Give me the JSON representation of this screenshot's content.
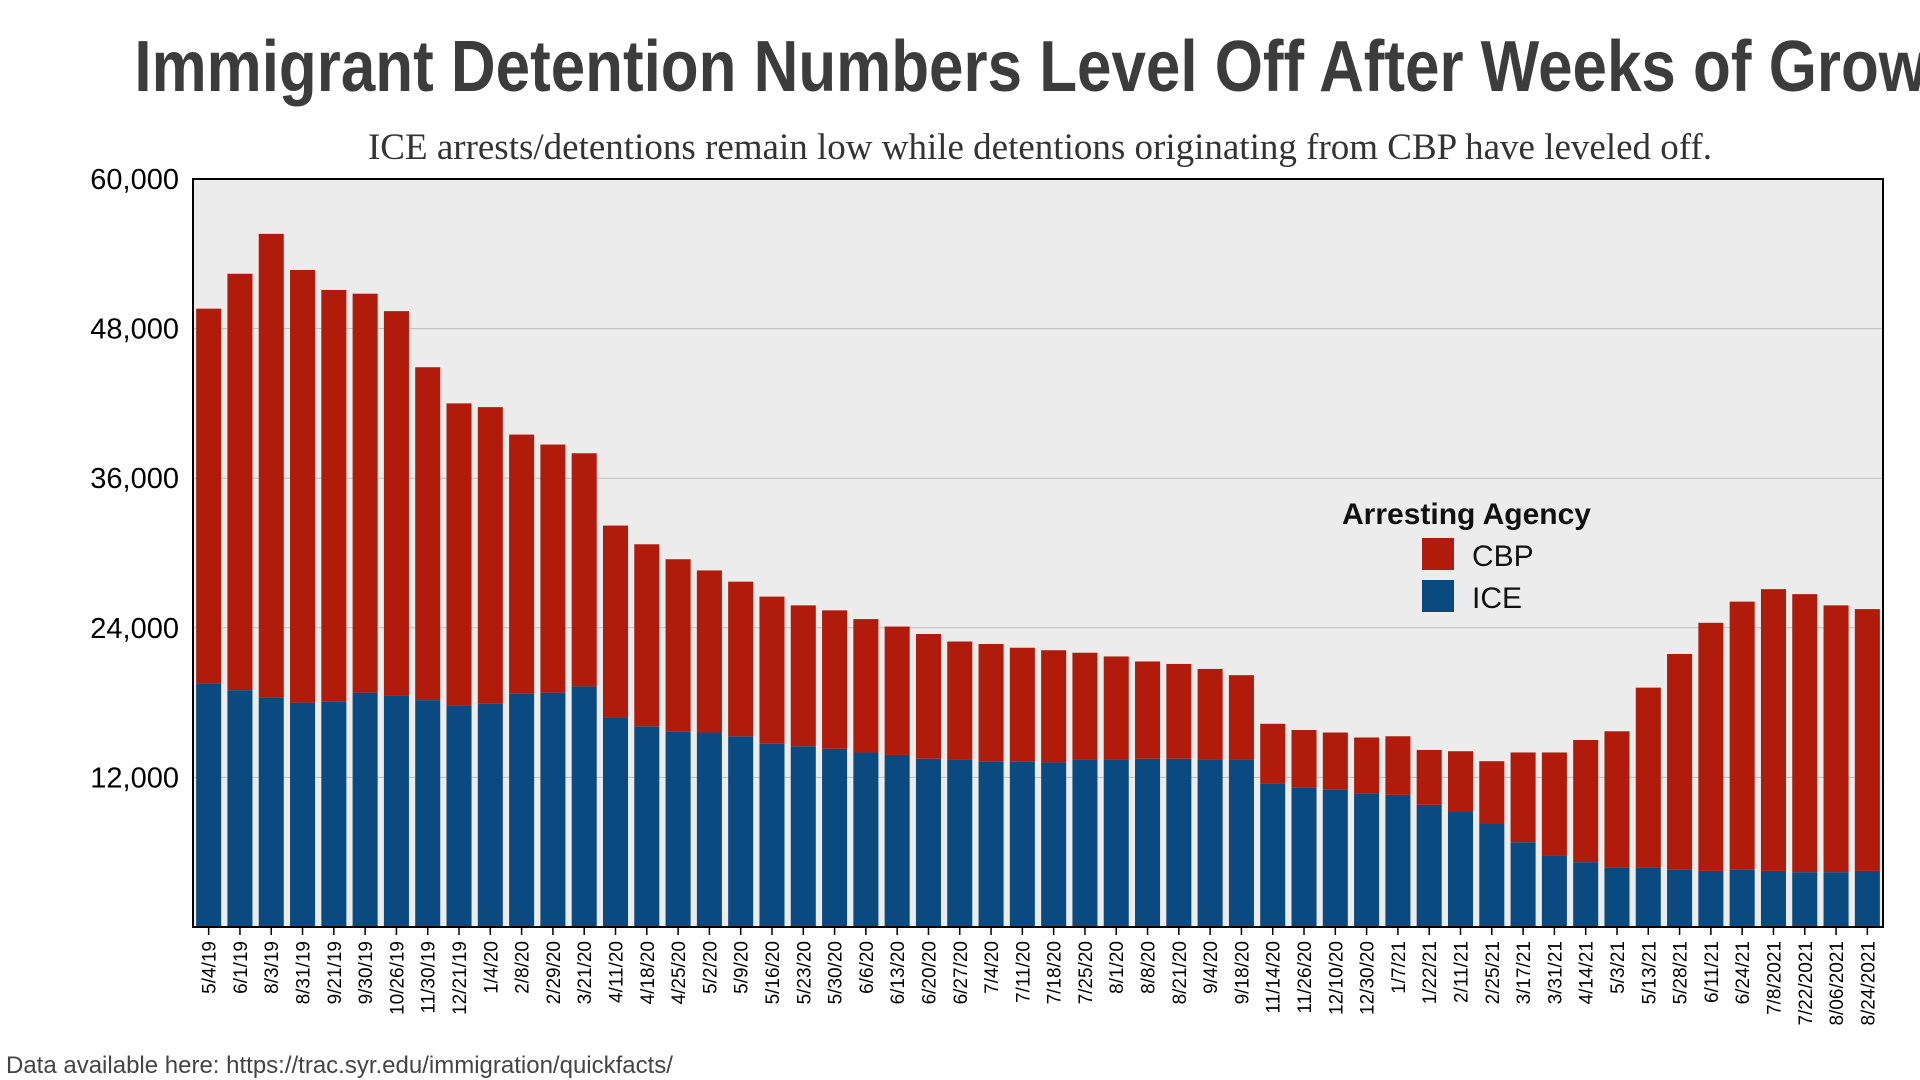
{
  "chart_data": {
    "type": "bar",
    "stacked": true,
    "title": "Immigrant Detention Numbers Level Off After Weeks of Growth",
    "subtitle": "ICE arrests/detentions remain low while detentions originating from CBP have leveled off.",
    "source_note": "Data available here: https://trac.syr.edu/immigration/quickfacts/",
    "ylim": [
      0,
      60000
    ],
    "yticks": [
      12000,
      24000,
      36000,
      48000,
      60000
    ],
    "ytick_labels": [
      "12,000",
      "24,000",
      "36,000",
      "48,000",
      "60,000"
    ],
    "grid": true,
    "legend": {
      "title": "Arresting Agency",
      "position": "right-center"
    },
    "colors": {
      "CBP": "#b01b0b",
      "ICE": "#0b4a80",
      "plot_bg": "#ececec"
    },
    "categories": [
      "5/4/19",
      "6/1/19",
      "8/3/19",
      "8/31/19",
      "9/21/19",
      "9/30/19",
      "10/26/19",
      "11/30/19",
      "12/21/19",
      "1/4/20",
      "2/8/20",
      "2/29/20",
      "3/21/20",
      "4/11/20",
      "4/18/20",
      "4/25/20",
      "5/2/20",
      "5/9/20",
      "5/16/20",
      "5/23/20",
      "5/30/20",
      "6/6/20",
      "6/13/20",
      "6/20/20",
      "6/27/20",
      "7/4/20",
      "7/11/20",
      "7/18/20",
      "7/25/20",
      "8/1/20",
      "8/8/20",
      "8/21/20",
      "9/4/20",
      "9/18/20",
      "11/14/20",
      "11/26/20",
      "12/10/20",
      "12/30/20",
      "1/7/21",
      "1/22/21",
      "2/11/21",
      "2/25/21",
      "3/17/21",
      "3/31/21",
      "4/14/21",
      "5/3/21",
      "5/13/21",
      "5/28/21",
      "6/11/21",
      "6/24/21",
      "7/8/2021",
      "7/22/2021",
      "8/06/2021",
      "8/24/2021"
    ],
    "series": [
      {
        "name": "ICE",
        "values": [
          19500,
          19000,
          18400,
          18000,
          18100,
          18800,
          18600,
          18200,
          17800,
          17900,
          18700,
          18800,
          19300,
          16800,
          16100,
          15700,
          15600,
          15300,
          14700,
          14500,
          14300,
          14000,
          13800,
          13500,
          13400,
          13300,
          13300,
          13200,
          13400,
          13400,
          13500,
          13500,
          13400,
          13400,
          11500,
          11200,
          11000,
          10700,
          10600,
          9800,
          9300,
          8300,
          6800,
          5700,
          5200,
          4800,
          4800,
          4600,
          4500,
          4600,
          4500,
          4400,
          4400,
          4500
        ]
      },
      {
        "name": "CBP",
        "values": [
          30100,
          33400,
          37200,
          34700,
          33000,
          32000,
          30800,
          26700,
          24200,
          23800,
          20800,
          19900,
          18700,
          15400,
          14600,
          13800,
          13000,
          12400,
          11800,
          11300,
          11100,
          10700,
          10300,
          10000,
          9500,
          9400,
          9100,
          9000,
          8600,
          8300,
          7800,
          7600,
          7300,
          6800,
          4800,
          4600,
          4600,
          4500,
          4700,
          4400,
          4800,
          5000,
          7200,
          8300,
          9800,
          10900,
          14400,
          17300,
          19900,
          21500,
          22600,
          22300,
          21400,
          21000
        ]
      }
    ]
  }
}
